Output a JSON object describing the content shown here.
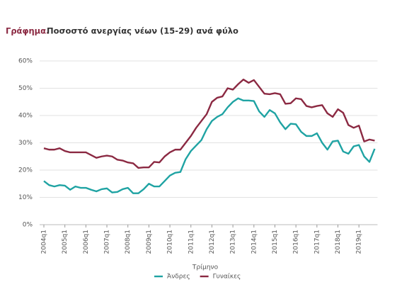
{
  "chart_data": {
    "type": "line",
    "title_label": "Γράφημα.",
    "title": "Ποσοστό ανεργίας νέων (15-29) ανά φύλο",
    "x_label": "Τρίμηνο",
    "categories": [
      "2004q1",
      null,
      null,
      null,
      "2005q1",
      null,
      null,
      null,
      "2006q1",
      null,
      null,
      null,
      "2007q1",
      null,
      null,
      null,
      "2008q1",
      null,
      null,
      null,
      "2009q1",
      null,
      null,
      null,
      "2010q1",
      null,
      null,
      null,
      "2011q1",
      null,
      null,
      null,
      "2012q1",
      null,
      null,
      null,
      "2013q1",
      null,
      null,
      null,
      "2014q1",
      null,
      null,
      null,
      "2015q1",
      null,
      null,
      null,
      "2016q1",
      null,
      null,
      null,
      "2017q1",
      null,
      null,
      null,
      "2018q1",
      null,
      null,
      null,
      "2019q1",
      null,
      null,
      null
    ],
    "series": [
      {
        "name": "Άνδρες",
        "color": "#1fa3a3",
        "values": [
          16,
          14.5,
          14,
          14.5,
          14.3,
          12.8,
          14,
          13.5,
          13.5,
          12.8,
          12.2,
          13,
          13.3,
          11.8,
          12,
          13,
          13.5,
          11.5,
          11.5,
          13,
          15,
          14,
          14,
          16,
          18,
          19,
          19.3,
          24,
          27,
          29,
          31,
          35,
          38,
          39.5,
          40.5,
          43,
          45,
          46.3,
          45.5,
          45.5,
          45.3,
          41.5,
          39.5,
          42,
          40.8,
          37.5,
          35,
          37,
          36.8,
          34,
          32.5,
          32.5,
          33.5,
          30,
          27.5,
          30.5,
          30.8,
          26.8,
          26,
          28.7,
          29.2,
          25,
          23,
          27.8
        ]
      },
      {
        "name": "Γυναίκες",
        "color": "#8b2942",
        "values": [
          28,
          27.5,
          27.5,
          28,
          27,
          26.5,
          26.5,
          26.5,
          26.5,
          25.5,
          24.5,
          25,
          25.3,
          25,
          23.8,
          23.5,
          22.8,
          22.5,
          20.8,
          21,
          21,
          23,
          22.8,
          25,
          26.5,
          27.5,
          27.5,
          30,
          32.5,
          35.5,
          38,
          40.5,
          45,
          46.5,
          47,
          50,
          49.5,
          51.5,
          53.2,
          52,
          53,
          50.5,
          48,
          47.8,
          48.2,
          47.8,
          44.3,
          44.5,
          46.3,
          46,
          43.5,
          43,
          43.5,
          43.8,
          40.8,
          39.5,
          42.3,
          41,
          36.5,
          35.5,
          36.3,
          30.5,
          31.2,
          30.8
        ]
      }
    ],
    "ylim": [
      0,
      60
    ],
    "yticks": [
      {
        "value": 0,
        "label": "0%"
      },
      {
        "value": 10,
        "label": "10%"
      },
      {
        "value": 20,
        "label": "20%"
      },
      {
        "value": 30,
        "label": "30%"
      },
      {
        "value": 40,
        "label": "40%"
      },
      {
        "value": 50,
        "label": "50%"
      },
      {
        "value": 60,
        "label": "60%"
      }
    ],
    "grid": true
  }
}
